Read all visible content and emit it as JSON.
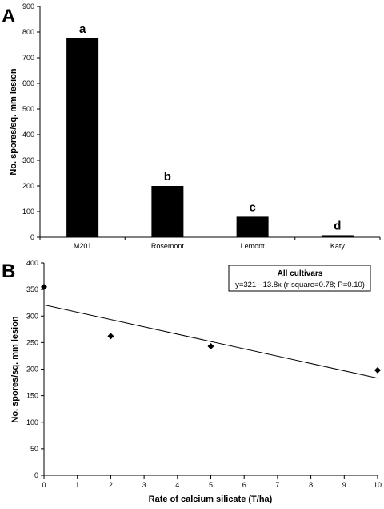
{
  "chart_data": [
    {
      "type": "bar",
      "panel_label": "A",
      "categories": [
        "M201",
        "Rosemont",
        "Lemont",
        "Katy"
      ],
      "values": [
        775,
        200,
        80,
        8
      ],
      "significance_letters": [
        "a",
        "b",
        "c",
        "d"
      ],
      "ylabel": "No. spores/sq. mm lesion",
      "xlabel": "",
      "ylim": [
        0,
        900
      ],
      "yticks": [
        "0",
        "100",
        "200",
        "300",
        "400",
        "500",
        "600",
        "700",
        "800",
        "900"
      ],
      "bar_color": "#000000",
      "grid": false
    },
    {
      "type": "scatter",
      "panel_label": "B",
      "points": [
        {
          "x": 0,
          "y": 355
        },
        {
          "x": 2,
          "y": 262
        },
        {
          "x": 5,
          "y": 243
        },
        {
          "x": 10,
          "y": 198
        }
      ],
      "trendline": {
        "intercept": 321,
        "slope": -13.8
      },
      "xlabel": "Rate of calcium silicate (T/ha)",
      "ylabel": "No. spores/sq. mm lesion",
      "xlim": [
        0,
        10
      ],
      "ylim": [
        0,
        400
      ],
      "xticks": [
        "0",
        "1",
        "2",
        "3",
        "4",
        "5",
        "6",
        "7",
        "8",
        "9",
        "10"
      ],
      "yticks": [
        "0",
        "50",
        "100",
        "150",
        "200",
        "250",
        "300",
        "350",
        "400"
      ],
      "legend": {
        "title": "All cultivars",
        "text": "y=321 - 13.8x (r-square=0.78; P=0.10)",
        "position": "top-right"
      },
      "grid": false
    }
  ]
}
